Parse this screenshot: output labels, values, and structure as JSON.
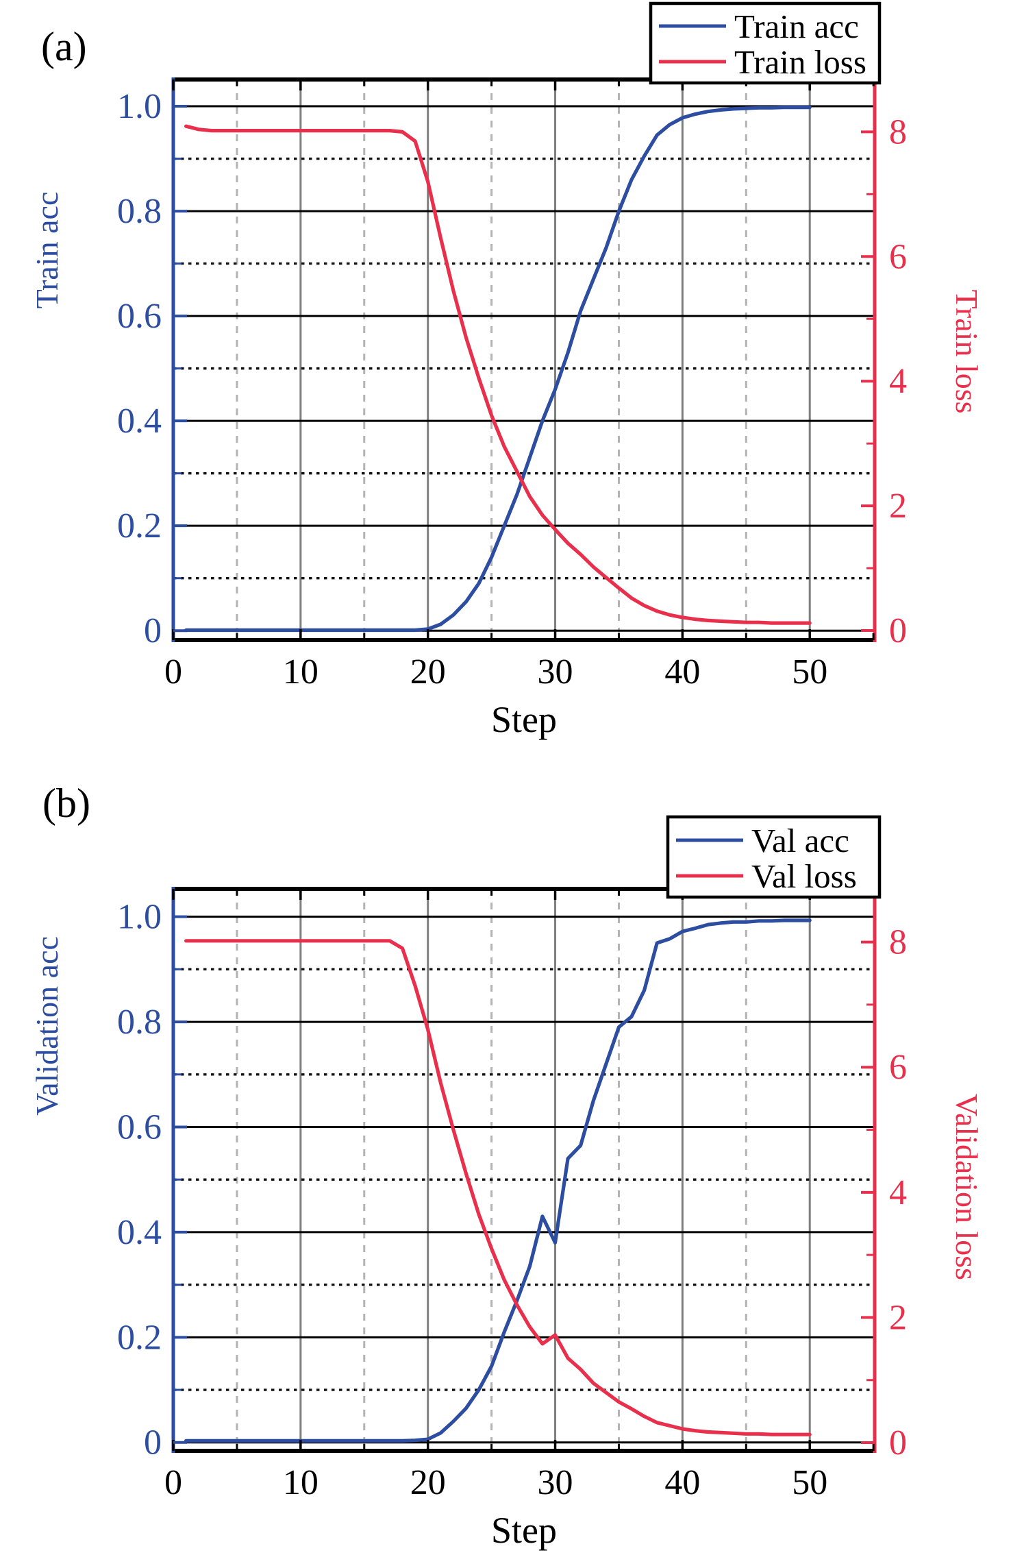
{
  "figure_colors": {
    "acc_blue": "#2c4da0",
    "loss_red": "#e8304c",
    "grid_major_h": "#000000",
    "grid_minor_h": "#111111",
    "grid_major_v": "#7f7f7f",
    "grid_minor_v": "#b3b3b3",
    "legend_border": "#000000",
    "background": "#ffffff"
  },
  "chart_data": [
    {
      "type": "line",
      "panel_label": "(a)",
      "xlabel": "Step",
      "ylabel_left": "Train acc",
      "ylabel_right": "Train loss",
      "xlim": [
        0,
        55.1
      ],
      "ylim_left": [
        -0.018,
        1.051
      ],
      "ylim_right": [
        -0.154,
        8.84
      ],
      "grid": "horizontal major solid black, horizontal minor dotted black, vertical major solid gray, vertical minor dashed light-gray",
      "x_ticks": [
        {
          "v": 0,
          "label": "0"
        },
        {
          "v": 10,
          "label": "10"
        },
        {
          "v": 20,
          "label": "20"
        },
        {
          "v": 30,
          "label": "30"
        },
        {
          "v": 40,
          "label": "40"
        },
        {
          "v": 50,
          "label": "50"
        }
      ],
      "x_minor": [
        5,
        15,
        25,
        35,
        45,
        55
      ],
      "x_grid_major": [
        10,
        20,
        30,
        40,
        50
      ],
      "x_grid_minor": [
        5,
        15,
        25,
        35,
        45
      ],
      "y_ticks_left": [
        {
          "v": 0,
          "label": "0"
        },
        {
          "v": 0.2,
          "label": "0.2"
        },
        {
          "v": 0.4,
          "label": "0.4"
        },
        {
          "v": 0.6,
          "label": "0.6"
        },
        {
          "v": 0.8,
          "label": "0.8"
        },
        {
          "v": 1.0,
          "label": "1.0"
        }
      ],
      "y_minor_left": [
        0.1,
        0.3,
        0.5,
        0.7,
        0.9
      ],
      "y_ticks_right": [
        {
          "v": 0,
          "label": "0"
        },
        {
          "v": 2,
          "label": "2"
        },
        {
          "v": 4,
          "label": "4"
        },
        {
          "v": 6,
          "label": "6"
        },
        {
          "v": 8,
          "label": "8"
        }
      ],
      "y_minor_right": [
        1,
        3,
        5,
        7
      ],
      "legend": {
        "position": "top-right",
        "entries": [
          {
            "label": "Train acc",
            "color": "#2c4da0"
          },
          {
            "label": "Train loss",
            "color": "#e8304c"
          }
        ]
      },
      "x": [
        1,
        2,
        3,
        4,
        5,
        6,
        7,
        8,
        9,
        10,
        11,
        12,
        13,
        14,
        15,
        16,
        17,
        18,
        19,
        20,
        21,
        22,
        23,
        24,
        25,
        26,
        27,
        28,
        29,
        30,
        31,
        32,
        33,
        34,
        35,
        36,
        37,
        38,
        39,
        40,
        41,
        42,
        43,
        44,
        45,
        46,
        47,
        48,
        49,
        50
      ],
      "series": [
        {
          "name": "Train acc",
          "axis": "left",
          "color": "#2c4da0",
          "values": [
            0.001,
            0.001,
            0.001,
            0.001,
            0.001,
            0.001,
            0.001,
            0.001,
            0.001,
            0.001,
            0.001,
            0.001,
            0.001,
            0.001,
            0.001,
            0.001,
            0.001,
            0.001,
            0.001,
            0.003,
            0.012,
            0.03,
            0.055,
            0.09,
            0.14,
            0.2,
            0.26,
            0.33,
            0.4,
            0.46,
            0.53,
            0.61,
            0.67,
            0.73,
            0.8,
            0.86,
            0.905,
            0.945,
            0.965,
            0.978,
            0.985,
            0.99,
            0.993,
            0.995,
            0.996,
            0.997,
            0.997,
            0.998,
            0.998,
            0.998
          ]
        },
        {
          "name": "Train loss",
          "axis": "right",
          "color": "#e8304c",
          "values": [
            8.09,
            8.04,
            8.02,
            8.02,
            8.02,
            8.02,
            8.02,
            8.02,
            8.02,
            8.02,
            8.02,
            8.02,
            8.02,
            8.02,
            8.02,
            8.02,
            8.02,
            8.0,
            7.85,
            7.2,
            6.3,
            5.45,
            4.7,
            4.05,
            3.45,
            2.95,
            2.55,
            2.15,
            1.85,
            1.62,
            1.4,
            1.22,
            1.02,
            0.85,
            0.68,
            0.52,
            0.4,
            0.31,
            0.25,
            0.21,
            0.18,
            0.16,
            0.15,
            0.14,
            0.13,
            0.13,
            0.12,
            0.12,
            0.12,
            0.12
          ]
        }
      ]
    },
    {
      "type": "line",
      "panel_label": "(b)",
      "xlabel": "Step",
      "ylabel_left": "Validation acc",
      "ylabel_right": "Validation loss",
      "xlim": [
        0,
        55.1
      ],
      "ylim_left": [
        -0.016,
        1.053
      ],
      "ylim_right": [
        -0.131,
        8.85
      ],
      "grid": "horizontal major solid black, horizontal minor dotted black, vertical major solid gray, vertical minor dashed light-gray",
      "x_ticks": [
        {
          "v": 0,
          "label": "0"
        },
        {
          "v": 10,
          "label": "10"
        },
        {
          "v": 20,
          "label": "20"
        },
        {
          "v": 30,
          "label": "30"
        },
        {
          "v": 40,
          "label": "40"
        },
        {
          "v": 50,
          "label": "50"
        }
      ],
      "x_minor": [
        5,
        15,
        25,
        35,
        45,
        55
      ],
      "x_grid_major": [
        10,
        20,
        30,
        40,
        50
      ],
      "x_grid_minor": [
        5,
        15,
        25,
        35,
        45
      ],
      "y_ticks_left": [
        {
          "v": 0,
          "label": "0"
        },
        {
          "v": 0.2,
          "label": "0.2"
        },
        {
          "v": 0.4,
          "label": "0.4"
        },
        {
          "v": 0.6,
          "label": "0.6"
        },
        {
          "v": 0.8,
          "label": "0.8"
        },
        {
          "v": 1.0,
          "label": "1.0"
        }
      ],
      "y_minor_left": [
        0.1,
        0.3,
        0.5,
        0.7,
        0.9
      ],
      "y_ticks_right": [
        {
          "v": 0,
          "label": "0"
        },
        {
          "v": 2,
          "label": "2"
        },
        {
          "v": 4,
          "label": "4"
        },
        {
          "v": 6,
          "label": "6"
        },
        {
          "v": 8,
          "label": "8"
        }
      ],
      "y_minor_right": [
        1,
        3,
        5,
        7
      ],
      "legend": {
        "position": "top-right",
        "entries": [
          {
            "label": "Val acc",
            "color": "#2c4da0"
          },
          {
            "label": "Val loss",
            "color": "#e8304c"
          }
        ]
      },
      "x": [
        1,
        2,
        3,
        4,
        5,
        6,
        7,
        8,
        9,
        10,
        11,
        12,
        13,
        14,
        15,
        16,
        17,
        18,
        19,
        20,
        21,
        22,
        23,
        24,
        25,
        26,
        27,
        28,
        29,
        30,
        31,
        32,
        33,
        34,
        35,
        36,
        37,
        38,
        39,
        40,
        41,
        42,
        43,
        44,
        45,
        46,
        47,
        48,
        49,
        50
      ],
      "series": [
        {
          "name": "Val acc",
          "axis": "left",
          "color": "#2c4da0",
          "values": [
            0.003,
            0.003,
            0.003,
            0.003,
            0.003,
            0.003,
            0.003,
            0.003,
            0.003,
            0.003,
            0.003,
            0.003,
            0.003,
            0.003,
            0.003,
            0.003,
            0.003,
            0.003,
            0.004,
            0.006,
            0.018,
            0.04,
            0.065,
            0.1,
            0.145,
            0.21,
            0.27,
            0.335,
            0.43,
            0.38,
            0.54,
            0.565,
            0.65,
            0.72,
            0.79,
            0.81,
            0.86,
            0.95,
            0.958,
            0.972,
            0.978,
            0.985,
            0.988,
            0.99,
            0.99,
            0.992,
            0.992,
            0.993,
            0.993,
            0.993
          ]
        },
        {
          "name": "Val loss",
          "axis": "right",
          "color": "#e8304c",
          "values": [
            8.02,
            8.02,
            8.02,
            8.02,
            8.02,
            8.02,
            8.02,
            8.02,
            8.02,
            8.02,
            8.02,
            8.02,
            8.02,
            8.02,
            8.02,
            8.02,
            8.02,
            7.9,
            7.3,
            6.6,
            5.75,
            5.0,
            4.3,
            3.65,
            3.1,
            2.6,
            2.2,
            1.85,
            1.58,
            1.72,
            1.35,
            1.17,
            0.95,
            0.8,
            0.65,
            0.54,
            0.42,
            0.32,
            0.27,
            0.22,
            0.19,
            0.17,
            0.16,
            0.15,
            0.14,
            0.14,
            0.13,
            0.13,
            0.13,
            0.13
          ]
        }
      ]
    }
  ]
}
